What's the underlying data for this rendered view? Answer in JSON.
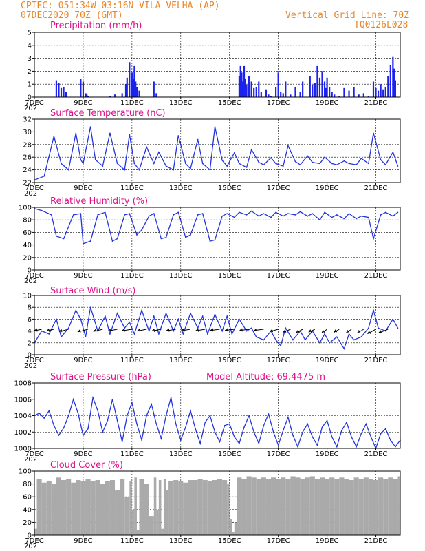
{
  "header": {
    "left_line1": "CPTEC:   051:34W-03:16N  VILA VELHA (AP)",
    "left_line2": "07DEC2020 70Z (GMT)",
    "right_line1": "Vertical Grid Line: 70Z",
    "right_line2": "TQ0126L028"
  },
  "x_axis": {
    "labels": [
      "7DEC",
      "9DEC",
      "11DEC",
      "13DEC",
      "15DEC",
      "17DEC",
      "19DEC",
      "21DEC"
    ],
    "year_fragment": "202",
    "day_range": [
      7,
      22
    ]
  },
  "colors": {
    "line": "#2233dd",
    "bars": "#1b22ee",
    "cloud": "#aaaaaa",
    "title": "#e0108a",
    "header": "#e8862a",
    "arrows": "#000000"
  },
  "chart_data": [
    {
      "type": "bar",
      "title": "Precipitation (mm/h)",
      "ylim": [
        0,
        5
      ],
      "yticks": [
        "0",
        "1",
        "2",
        "3",
        "4",
        "5"
      ],
      "x_days": [
        7.9,
        8.0,
        8.1,
        8.2,
        8.3,
        8.9,
        9.0,
        9.1,
        9.15,
        9.2,
        10.1,
        10.3,
        10.6,
        10.75,
        10.8,
        10.9,
        11.0,
        11.05,
        11.1,
        11.15,
        11.2,
        11.3,
        11.9,
        12.0,
        15.4,
        15.45,
        15.5,
        15.55,
        15.6,
        15.65,
        15.7,
        15.8,
        15.9,
        16.0,
        16.1,
        16.2,
        16.3,
        16.5,
        16.6,
        16.7,
        16.9,
        17.0,
        17.1,
        17.2,
        17.3,
        17.5,
        17.7,
        17.9,
        18.0,
        18.3,
        18.4,
        18.5,
        18.6,
        18.7,
        18.8,
        18.9,
        18.95,
        19.0,
        19.1,
        19.2,
        19.3,
        19.5,
        19.7,
        19.9,
        20.1,
        20.3,
        20.5,
        20.7,
        20.9,
        21.0,
        21.1,
        21.2,
        21.3,
        21.4,
        21.5,
        21.6,
        21.7,
        21.75,
        21.8
      ],
      "values": [
        1.3,
        1.1,
        0.7,
        0.8,
        0.4,
        1.4,
        1.2,
        0.3,
        0.2,
        0.1,
        0.1,
        0.2,
        0.3,
        1.0,
        1.5,
        2.7,
        1.9,
        1.4,
        2.4,
        1.2,
        0.8,
        0.5,
        1.2,
        0.3,
        1.6,
        2.4,
        1.9,
        1.2,
        2.4,
        1.4,
        0.9,
        1.6,
        1.2,
        0.7,
        0.8,
        1.2,
        0.4,
        0.6,
        0.2,
        0.1,
        0.8,
        1.9,
        0.4,
        0.3,
        1.2,
        0.2,
        0.8,
        0.4,
        1.2,
        1.6,
        0.9,
        1.1,
        2.4,
        1.5,
        2.0,
        1.2,
        0.7,
        1.5,
        0.8,
        0.4,
        0.2,
        0.1,
        0.7,
        0.5,
        0.8,
        0.2,
        0.3,
        0.1,
        1.2,
        0.7,
        0.5,
        1.0,
        0.6,
        0.8,
        1.6,
        2.5,
        3.1,
        2.2,
        1.3
      ]
    },
    {
      "type": "line",
      "title": "Surface Temperature (nC)",
      "ylim": [
        22,
        32
      ],
      "yticks": [
        "22",
        "24",
        "26",
        "28",
        "30",
        "32"
      ],
      "x_days": [
        7.0,
        7.4,
        7.8,
        8.1,
        8.4,
        8.7,
        8.9,
        9.0,
        9.3,
        9.5,
        9.8,
        10.1,
        10.4,
        10.7,
        10.9,
        11.1,
        11.3,
        11.6,
        11.9,
        12.1,
        12.4,
        12.7,
        12.9,
        13.2,
        13.4,
        13.7,
        13.9,
        14.2,
        14.4,
        14.7,
        14.9,
        15.2,
        15.4,
        15.7,
        15.9,
        16.2,
        16.4,
        16.7,
        16.9,
        17.2,
        17.4,
        17.7,
        17.9,
        18.2,
        18.4,
        18.7,
        18.9,
        19.2,
        19.4,
        19.7,
        19.9,
        20.2,
        20.4,
        20.7,
        20.9,
        21.2,
        21.4,
        21.7,
        21.9
      ],
      "values": [
        22.4,
        23.0,
        29.3,
        25.0,
        24.0,
        29.8,
        25.6,
        25.0,
        30.8,
        25.6,
        24.6,
        29.8,
        25.0,
        24.0,
        29.6,
        25.0,
        24.0,
        27.6,
        25.0,
        26.8,
        24.6,
        24.0,
        29.4,
        25.0,
        24.2,
        28.8,
        25.0,
        24.0,
        30.8,
        25.5,
        24.6,
        26.7,
        25.0,
        24.4,
        27.2,
        25.2,
        24.8,
        25.9,
        25.0,
        24.6,
        27.8,
        25.3,
        24.8,
        26.2,
        25.2,
        25.0,
        26.0,
        25.0,
        24.8,
        25.4,
        25.0,
        24.8,
        25.8,
        25.0,
        29.8,
        25.6,
        24.8,
        26.8,
        24.6
      ]
    },
    {
      "type": "line",
      "title": "Relative Humidity (%)",
      "ylim": [
        0,
        100
      ],
      "yticks": [
        "0",
        "20",
        "40",
        "60",
        "80",
        "100"
      ],
      "x_days": [
        7.0,
        7.3,
        7.7,
        7.9,
        8.2,
        8.6,
        8.9,
        9.0,
        9.3,
        9.6,
        9.9,
        10.2,
        10.4,
        10.7,
        10.9,
        11.2,
        11.4,
        11.7,
        11.9,
        12.2,
        12.4,
        12.7,
        12.9,
        13.2,
        13.4,
        13.7,
        13.9,
        14.2,
        14.4,
        14.7,
        14.9,
        15.2,
        15.4,
        15.7,
        15.9,
        16.2,
        16.4,
        16.7,
        16.9,
        17.2,
        17.4,
        17.7,
        17.9,
        18.2,
        18.4,
        18.7,
        18.9,
        19.2,
        19.4,
        19.7,
        19.9,
        20.2,
        20.4,
        20.7,
        20.9,
        21.2,
        21.4,
        21.7,
        21.9
      ],
      "values": [
        98,
        95,
        88,
        54,
        50,
        88,
        90,
        42,
        46,
        88,
        92,
        46,
        50,
        88,
        90,
        56,
        64,
        86,
        90,
        50,
        52,
        88,
        92,
        52,
        56,
        88,
        90,
        46,
        48,
        86,
        90,
        84,
        92,
        88,
        94,
        86,
        90,
        84,
        92,
        86,
        90,
        88,
        93,
        86,
        90,
        80,
        92,
        84,
        88,
        82,
        90,
        82,
        86,
        84,
        50,
        88,
        92,
        86,
        92
      ]
    },
    {
      "type": "line",
      "title": "Surface Wind (m/s)",
      "ylim": [
        0,
        10
      ],
      "yticks": [
        "0",
        "2",
        "4",
        "6",
        "8",
        "10"
      ],
      "x_days": [
        7.0,
        7.3,
        7.6,
        7.9,
        8.1,
        8.4,
        8.7,
        8.9,
        9.1,
        9.3,
        9.6,
        9.9,
        10.1,
        10.4,
        10.7,
        10.9,
        11.1,
        11.4,
        11.7,
        11.9,
        12.1,
        12.4,
        12.7,
        12.9,
        13.1,
        13.4,
        13.7,
        13.9,
        14.1,
        14.4,
        14.7,
        14.9,
        15.1,
        15.4,
        15.7,
        15.9,
        16.1,
        16.4,
        16.7,
        16.9,
        17.1,
        17.3,
        17.6,
        17.9,
        18.1,
        18.4,
        18.7,
        18.9,
        19.1,
        19.4,
        19.7,
        19.9,
        20.1,
        20.4,
        20.7,
        20.9,
        21.1,
        21.4,
        21.7,
        21.9
      ],
      "values": [
        2.0,
        4.0,
        3.5,
        6.0,
        3.0,
        4.5,
        7.5,
        6.0,
        3.0,
        8.0,
        4.0,
        6.5,
        3.5,
        7.0,
        4.5,
        5.5,
        3.5,
        7.5,
        4.0,
        6.5,
        3.5,
        7.0,
        4.0,
        6.0,
        3.5,
        7.0,
        4.5,
        6.5,
        3.5,
        6.8,
        4.0,
        6.5,
        3.5,
        6.0,
        4.0,
        4.5,
        3.0,
        2.5,
        4.0,
        2.5,
        1.5,
        4.5,
        2.5,
        4.0,
        2.5,
        4.0,
        2.0,
        3.5,
        2.0,
        3.0,
        1.0,
        3.5,
        2.5,
        3.0,
        4.5,
        7.5,
        4.5,
        4.0,
        6.0,
        4.5
      ],
      "arrows": {
        "x_days": [
          7.3,
          7.8,
          8.4,
          9.2,
          9.8,
          10.4,
          11.0,
          11.6,
          12.2,
          12.8,
          13.4,
          14.0,
          14.6,
          15.2,
          15.8,
          16.4,
          17.0,
          17.5,
          18.0,
          18.5,
          19.0,
          19.5,
          20.0,
          20.5,
          21.0,
          21.5
        ],
        "u": [
          3.5,
          3.5,
          4.5,
          5.0,
          4.5,
          4.5,
          4.8,
          4.5,
          4.5,
          4.5,
          4.5,
          4.5,
          4.5,
          4.5,
          4.5,
          4.5,
          4.0,
          3.5,
          3.0,
          3.0,
          2.5,
          2.5,
          2.5,
          3.0,
          4.0,
          4.5
        ],
        "v": [
          1.0,
          1.2,
          1.5,
          1.8,
          1.5,
          1.2,
          1.0,
          1.2,
          1.2,
          1.0,
          1.0,
          1.0,
          0.8,
          0.8,
          0.8,
          0.8,
          1.5,
          2.0,
          2.2,
          2.0,
          2.5,
          2.0,
          2.5,
          2.5,
          3.0,
          2.5
        ]
      }
    },
    {
      "type": "line",
      "title": "Surface Pressure (hPa)",
      "annotation": "Model Altitude: 69.4475 m",
      "ylim": [
        1000,
        1008
      ],
      "yticks": [
        "1000",
        "1002",
        "1004",
        "1006",
        "1008"
      ],
      "x_days": [
        7.0,
        7.2,
        7.4,
        7.6,
        7.8,
        8.0,
        8.2,
        8.4,
        8.6,
        8.8,
        9.0,
        9.2,
        9.4,
        9.6,
        9.8,
        10.0,
        10.2,
        10.4,
        10.6,
        10.8,
        11.0,
        11.2,
        11.4,
        11.6,
        11.8,
        12.0,
        12.2,
        12.4,
        12.6,
        12.8,
        13.0,
        13.2,
        13.4,
        13.6,
        13.8,
        14.0,
        14.2,
        14.4,
        14.6,
        14.8,
        15.0,
        15.2,
        15.4,
        15.6,
        15.8,
        16.0,
        16.2,
        16.4,
        16.6,
        16.8,
        17.0,
        17.2,
        17.4,
        17.6,
        17.8,
        18.0,
        18.2,
        18.4,
        18.6,
        18.8,
        19.0,
        19.2,
        19.4,
        19.6,
        19.8,
        20.0,
        20.2,
        20.4,
        20.6,
        20.8,
        21.0,
        21.2,
        21.4,
        21.6,
        21.8,
        22.0
      ],
      "values": [
        1004.0,
        1004.3,
        1003.7,
        1004.6,
        1002.8,
        1001.6,
        1002.5,
        1004.0,
        1006.0,
        1004.2,
        1001.6,
        1002.4,
        1006.2,
        1004.6,
        1002.0,
        1003.4,
        1006.0,
        1003.4,
        1000.8,
        1004.0,
        1005.6,
        1003.0,
        1001.0,
        1004.0,
        1005.4,
        1003.0,
        1001.2,
        1004.0,
        1006.2,
        1003.0,
        1001.0,
        1002.6,
        1004.6,
        1002.4,
        1000.6,
        1003.2,
        1004.0,
        1002.0,
        1000.8,
        1002.8,
        1003.0,
        1001.4,
        1000.6,
        1002.6,
        1004.0,
        1002.0,
        1000.6,
        1002.8,
        1004.2,
        1002.0,
        1000.4,
        1002.2,
        1003.8,
        1001.6,
        1000.2,
        1002.0,
        1003.0,
        1001.4,
        1000.4,
        1002.6,
        1003.4,
        1001.4,
        1000.2,
        1002.2,
        1003.2,
        1001.4,
        1000.2,
        1001.8,
        1003.0,
        1001.4,
        1000.0,
        1001.8,
        1002.4,
        1001.0,
        1000.2,
        1001.0
      ]
    },
    {
      "type": "area",
      "title": "Cloud Cover (%)",
      "ylim": [
        0,
        100
      ],
      "yticks": [
        "0",
        "20",
        "40",
        "60",
        "80",
        "100"
      ],
      "x_days": [
        7.0,
        7.1,
        7.3,
        7.5,
        7.7,
        7.9,
        8.1,
        8.3,
        8.5,
        8.7,
        8.9,
        9.1,
        9.3,
        9.5,
        9.7,
        9.9,
        10.1,
        10.3,
        10.5,
        10.7,
        10.9,
        11.0,
        11.1,
        11.2,
        11.3,
        11.5,
        11.7,
        11.9,
        12.0,
        12.1,
        12.2,
        12.3,
        12.4,
        12.5,
        12.7,
        12.9,
        13.1,
        13.3,
        13.5,
        13.7,
        13.9,
        14.1,
        14.3,
        14.5,
        14.7,
        14.9,
        15.0,
        15.1,
        15.2,
        15.3,
        15.5,
        15.7,
        15.9,
        16.1,
        16.3,
        16.5,
        16.7,
        16.9,
        17.1,
        17.3,
        17.5,
        17.7,
        17.9,
        18.1,
        18.3,
        18.5,
        18.7,
        18.9,
        19.1,
        19.3,
        19.5,
        19.7,
        19.9,
        20.1,
        20.3,
        20.5,
        20.7,
        20.9,
        21.1,
        21.3,
        21.5,
        21.7,
        21.9,
        22.0
      ],
      "values": [
        10,
        88,
        82,
        85,
        80,
        90,
        86,
        88,
        82,
        86,
        84,
        88,
        85,
        86,
        80,
        84,
        86,
        70,
        88,
        60,
        84,
        40,
        90,
        8,
        88,
        80,
        30,
        90,
        40,
        86,
        10,
        88,
        70,
        84,
        86,
        84,
        82,
        86,
        86,
        88,
        86,
        84,
        86,
        88,
        86,
        80,
        25,
        5,
        20,
        90,
        88,
        92,
        90,
        88,
        90,
        88,
        90,
        88,
        90,
        88,
        92,
        90,
        88,
        90,
        92,
        88,
        90,
        88,
        90,
        88,
        90,
        88,
        86,
        90,
        88,
        90,
        88,
        86,
        90,
        88,
        90,
        88,
        92,
        90
      ]
    }
  ]
}
